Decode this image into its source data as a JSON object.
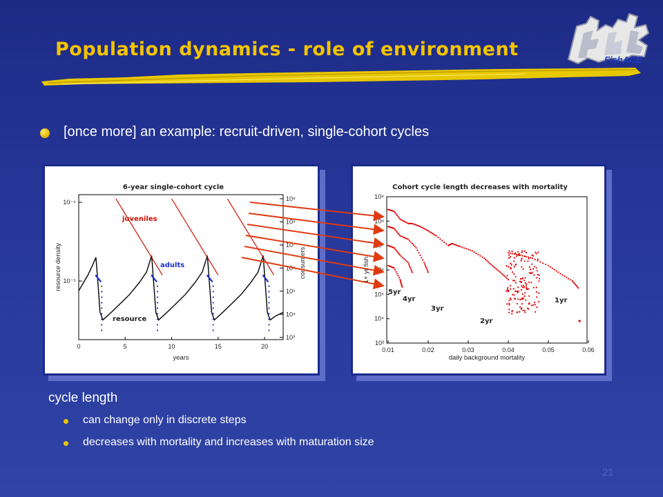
{
  "slide": {
    "title": "Population dynamics - role of environment",
    "logo_text": "FishACE",
    "bullet": "[once more] an example: recruit-driven, single-cohort cycles",
    "subheading": "cycle length",
    "sub_bullets": [
      "can change only in discrete steps",
      "decreases with mortality and increases with maturation size"
    ],
    "page_number": "21"
  },
  "colors": {
    "background": "#27379a",
    "title": "#f4c400",
    "bullet": "#e9b800",
    "juveniles": "#cc1100",
    "adults": "#1a2fcc",
    "resource": "#000000",
    "arrows": "#e03a10",
    "points": "#e00000"
  },
  "chart_data": [
    {
      "type": "line",
      "title": "6-year single-cohort cycle",
      "xlabel": "years",
      "ylabel_left": "resource density",
      "ylabel_right": "consumers",
      "xlim": [
        0,
        22
      ],
      "xticks": [
        "0",
        "5",
        "10",
        "15",
        "20"
      ],
      "ylim_left": [
        1.8e-06,
        0.000125
      ],
      "yticks_left": [
        "10⁻⁴",
        "10⁻⁵"
      ],
      "ylim_right": [
        800,
        1500000000
      ],
      "yticks_right": [
        "10⁹",
        "10⁸",
        "10⁷",
        "10⁶",
        "10⁵",
        "10⁴",
        "10³"
      ],
      "annotations": [
        "juveniles",
        "adults",
        "resource"
      ],
      "series": [
        {
          "name": "juveniles",
          "axis": "right",
          "segments": [
            [
              [
                4.0,
                1000000000
              ],
              [
                9.0,
                500000
              ]
            ],
            [
              [
                10.0,
                1000000000
              ],
              [
                15.0,
                500000
              ]
            ],
            [
              [
                16.0,
                1000000000
              ],
              [
                21.0,
                500000
              ]
            ]
          ]
        },
        {
          "name": "adults",
          "axis": "right",
          "segments": [
            [
              [
                1.8,
                500000
              ],
              [
                2.4,
                250000
              ]
            ],
            [
              [
                7.8,
                500000
              ],
              [
                8.4,
                250000
              ]
            ],
            [
              [
                13.8,
                500000
              ],
              [
                14.4,
                250000
              ]
            ],
            [
              [
                19.8,
                500000
              ],
              [
                20.4,
                250000
              ]
            ]
          ]
        },
        {
          "name": "resource",
          "axis": "left",
          "points": [
            [
              0.0,
              7.5e-06
            ],
            [
              0.5,
              9.5e-06
            ],
            [
              1.0,
              1.2e-05
            ],
            [
              1.5,
              1.6e-05
            ],
            [
              1.85,
              2e-05
            ],
            [
              2.05,
              1e-05
            ],
            [
              2.3,
              4e-06
            ],
            [
              2.6,
              3.2e-06
            ],
            [
              3.5,
              4e-06
            ],
            [
              4.5,
              5.2e-06
            ],
            [
              5.5,
              6.8e-06
            ],
            [
              6.5,
              9.5e-06
            ],
            [
              7.3,
              1.3e-05
            ],
            [
              7.85,
              2.1e-05
            ],
            [
              8.05,
              1e-05
            ],
            [
              8.3,
              4e-06
            ],
            [
              8.6,
              3.2e-06
            ],
            [
              9.5,
              4e-06
            ],
            [
              10.5,
              5.2e-06
            ],
            [
              11.5,
              6.8e-06
            ],
            [
              12.5,
              9.5e-06
            ],
            [
              13.3,
              1.3e-05
            ],
            [
              13.85,
              2.1e-05
            ],
            [
              14.05,
              1e-05
            ],
            [
              14.3,
              4e-06
            ],
            [
              14.6,
              3.2e-06
            ],
            [
              15.5,
              4e-06
            ],
            [
              16.5,
              5.2e-06
            ],
            [
              17.5,
              6.8e-06
            ],
            [
              18.5,
              9.5e-06
            ],
            [
              19.3,
              1.3e-05
            ],
            [
              19.85,
              2.1e-05
            ],
            [
              20.05,
              1e-05
            ],
            [
              20.3,
              4e-06
            ],
            [
              20.6,
              3.2e-06
            ],
            [
              21.2,
              3.6e-06
            ],
            [
              22.0,
              4e-06
            ]
          ]
        }
      ]
    },
    {
      "type": "scatter",
      "title": "Cohort cycle length decreases with mortality",
      "xlabel": "daily background mortality",
      "ylabel": "1+ yr fish",
      "xlim": [
        0.01,
        0.06
      ],
      "xticks": [
        "0.01",
        "0.02",
        "0.03",
        "0.04",
        "0.05",
        "0.06"
      ],
      "ylim": [
        1000,
        1000000000
      ],
      "yticks": [
        "10⁹",
        "10⁸",
        "10⁷",
        "10⁶",
        "10⁵",
        "10⁴",
        "10³"
      ],
      "annotations": [
        "5yr",
        "4yr",
        "3yr",
        "2yr",
        "1yr"
      ],
      "branches": [
        {
          "label": "5yr",
          "points": [
            [
              0.01,
              300000000
            ],
            [
              0.0115,
              250000000
            ],
            [
              0.013,
              120000000
            ],
            [
              0.015,
              80000000
            ],
            [
              0.016,
              80000000
            ],
            [
              0.018,
              60000000
            ],
            [
              0.02,
              40000000
            ],
            [
              0.022,
              25000000
            ],
            [
              0.025,
              10000000
            ],
            [
              0.026,
              12000000
            ],
            [
              0.028,
              9000000
            ],
            [
              0.031,
              6000000
            ],
            [
              0.034,
              3000000
            ],
            [
              0.036,
              1500000
            ],
            [
              0.038,
              800000
            ],
            [
              0.04,
              400000
            ]
          ]
        },
        {
          "label": "4yr",
          "points": [
            [
              0.01,
              60000000
            ],
            [
              0.0115,
              50000000
            ],
            [
              0.013,
              25000000
            ],
            [
              0.015,
              18000000
            ],
            [
              0.017,
              8000000
            ],
            [
              0.019,
              2000000
            ],
            [
              0.02,
              800000
            ]
          ]
        },
        {
          "label": "3yr",
          "points": [
            [
              0.01,
              10000000
            ],
            [
              0.0115,
              8000000
            ],
            [
              0.013,
              4000000
            ],
            [
              0.015,
              2000000
            ],
            [
              0.016,
              800000
            ]
          ]
        },
        {
          "label": "2yr",
          "points": [
            [
              0.01,
              1500000
            ],
            [
              0.0115,
              1200000
            ],
            [
              0.013,
              400000
            ],
            [
              0.0135,
              200000
            ]
          ]
        },
        {
          "label": "1yr",
          "points": [
            [
              0.04,
              5000000
            ],
            [
              0.043,
              4000000
            ],
            [
              0.046,
              3000000
            ],
            [
              0.05,
              1500000
            ],
            [
              0.053,
              700000
            ],
            [
              0.056,
              350000
            ],
            [
              0.0575,
              180000
            ]
          ]
        }
      ]
    }
  ]
}
